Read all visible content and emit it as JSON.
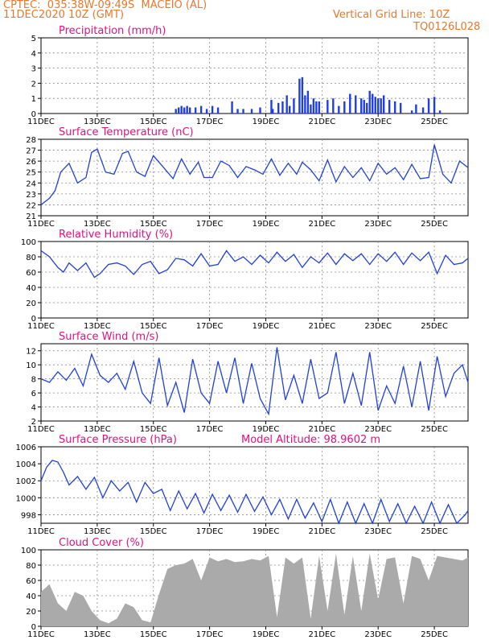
{
  "header": {
    "line1": "CPTEC:  035:38W-09:49S  MACEIO (AL)",
    "line2": "11DEC2020 10Z (GMT)",
    "grid_note": "Vertical Grid Line: 10Z",
    "code": "TQ0126L028"
  },
  "colors": {
    "header": "#e8782a",
    "title": "#e0117f",
    "line": "#1f3fe0",
    "bar": "#1f3fe0",
    "cloud": "#aaaaaa",
    "grid": "#8a8a8a"
  },
  "chart_data": [
    {
      "type": "bar",
      "title": "Precipitation (mm/h)",
      "x_ticks": [
        "11DEC",
        "13DEC",
        "15DEC",
        "17DEC",
        "19DEC",
        "21DEC",
        "23DEC",
        "25DEC"
      ],
      "ylim": [
        0,
        5
      ],
      "y_ticks": [
        "0",
        "1",
        "2",
        "3",
        "4",
        "5"
      ],
      "grid": true,
      "series": [
        {
          "x": [
            4.8,
            4.9,
            5.0,
            5.1,
            5.2,
            5.3,
            5.5,
            5.7,
            5.9,
            6.1,
            6.3,
            6.8,
            7.0,
            7.2,
            7.5,
            7.8,
            8.2,
            8.25,
            8.45,
            8.6,
            8.75,
            8.85,
            9.0,
            9.2,
            9.3,
            9.4,
            9.5,
            9.6,
            9.7,
            9.8,
            9.9,
            10.2,
            10.4,
            10.6,
            10.8,
            11.0,
            11.2,
            11.4,
            11.5,
            11.6,
            11.7,
            11.8,
            11.9,
            12.0,
            12.1,
            12.2,
            12.4,
            12.6,
            12.8,
            13.2,
            13.35,
            13.6,
            13.8,
            14.0,
            14.2
          ],
          "values": [
            0.3,
            0.4,
            0.5,
            0.4,
            0.5,
            0.4,
            0.4,
            0.5,
            0.3,
            0.5,
            0.4,
            0.8,
            0.3,
            0.3,
            0.3,
            0.4,
            0.9,
            0.3,
            0.7,
            0.8,
            1.2,
            0.5,
            1.0,
            2.3,
            2.4,
            1.2,
            1.5,
            0.6,
            1.0,
            0.8,
            0.8,
            0.9,
            1.0,
            0.5,
            0.8,
            1.3,
            1.2,
            1.0,
            0.9,
            0.7,
            1.5,
            1.3,
            1.1,
            1.0,
            1.0,
            1.2,
            0.9,
            0.8,
            0.7,
            0.2,
            0.6,
            0.4,
            1.0,
            1.1,
            0.2
          ]
        }
      ]
    },
    {
      "type": "line",
      "title": "Surface Temperature (nC)",
      "x_ticks": [
        "11DEC",
        "13DEC",
        "15DEC",
        "17DEC",
        "19DEC",
        "21DEC",
        "23DEC",
        "25DEC"
      ],
      "ylim": [
        21,
        28
      ],
      "y_ticks": [
        "21",
        "22",
        "23",
        "24",
        "25",
        "26",
        "27",
        "28"
      ],
      "grid": true,
      "series": [
        {
          "x": [
            0.0,
            0.3,
            0.5,
            0.7,
            1.0,
            1.3,
            1.6,
            1.8,
            2.0,
            2.3,
            2.6,
            2.9,
            3.1,
            3.4,
            3.7,
            4.0,
            4.4,
            4.7,
            5.0,
            5.3,
            5.6,
            5.8,
            6.1,
            6.4,
            6.7,
            7.0,
            7.3,
            7.6,
            7.9,
            8.2,
            8.5,
            8.8,
            9.1,
            9.3,
            9.6,
            9.9,
            10.2,
            10.5,
            10.8,
            11.1,
            11.4,
            11.7,
            12.0,
            12.3,
            12.6,
            12.9,
            13.2,
            13.5,
            13.8,
            14.0,
            14.3,
            14.6,
            14.9,
            15.2
          ],
          "values": [
            22.0,
            22.6,
            23.3,
            25.0,
            25.8,
            24.0,
            24.5,
            26.8,
            27.1,
            25.0,
            24.8,
            26.7,
            26.9,
            25.0,
            24.6,
            26.5,
            25.3,
            24.4,
            26.2,
            24.8,
            25.9,
            24.5,
            24.5,
            26.0,
            25.6,
            24.5,
            25.5,
            25.2,
            24.8,
            26.2,
            24.7,
            25.8,
            24.8,
            25.9,
            25.2,
            24.2,
            26.1,
            24.1,
            25.5,
            24.5,
            25.4,
            24.2,
            25.8,
            24.8,
            25.4,
            24.3,
            25.7,
            24.4,
            24.5,
            27.5,
            24.8,
            24.0,
            26.0,
            25.4
          ]
        }
      ]
    },
    {
      "type": "line",
      "title": "Relative Humidity (%)",
      "x_ticks": [
        "11DEC",
        "13DEC",
        "15DEC",
        "17DEC",
        "19DEC",
        "21DEC",
        "23DEC",
        "25DEC"
      ],
      "ylim": [
        0,
        100
      ],
      "y_ticks": [
        "0",
        "20",
        "40",
        "60",
        "80",
        "100"
      ],
      "grid": true,
      "series": [
        {
          "x": [
            0.0,
            0.3,
            0.6,
            0.8,
            1.0,
            1.3,
            1.6,
            1.9,
            2.1,
            2.4,
            2.7,
            3.0,
            3.3,
            3.6,
            3.9,
            4.2,
            4.5,
            4.8,
            5.1,
            5.4,
            5.7,
            6.0,
            6.3,
            6.6,
            6.9,
            7.2,
            7.5,
            7.8,
            8.1,
            8.4,
            8.7,
            9.0,
            9.3,
            9.6,
            9.9,
            10.2,
            10.5,
            10.8,
            11.1,
            11.4,
            11.7,
            12.0,
            12.3,
            12.6,
            12.9,
            13.2,
            13.5,
            13.8,
            14.1,
            14.4,
            14.7,
            15.0,
            15.2
          ],
          "values": [
            88,
            80,
            66,
            60,
            72,
            62,
            72,
            53,
            58,
            70,
            72,
            68,
            57,
            70,
            74,
            58,
            63,
            78,
            76,
            68,
            84,
            68,
            70,
            88,
            74,
            80,
            70,
            82,
            72,
            86,
            74,
            83,
            66,
            80,
            72,
            85,
            70,
            84,
            75,
            84,
            70,
            84,
            74,
            86,
            70,
            85,
            75,
            86,
            58,
            82,
            70,
            72,
            78
          ]
        }
      ]
    },
    {
      "type": "line",
      "title": "Surface Wind (m/s)",
      "x_ticks": [
        "11DEC",
        "13DEC",
        "15DEC",
        "17DEC",
        "19DEC",
        "21DEC",
        "23DEC",
        "25DEC"
      ],
      "ylim": [
        2,
        13
      ],
      "y_ticks": [
        "2",
        "4",
        "6",
        "8",
        "10",
        "12"
      ],
      "grid": true,
      "series": [
        {
          "x": [
            0.0,
            0.3,
            0.6,
            0.9,
            1.2,
            1.5,
            1.8,
            2.1,
            2.4,
            2.7,
            3.0,
            3.3,
            3.6,
            3.9,
            4.2,
            4.5,
            4.8,
            5.1,
            5.4,
            5.7,
            6.0,
            6.3,
            6.6,
            6.9,
            7.2,
            7.5,
            7.8,
            8.1,
            8.4,
            8.7,
            9.0,
            9.3,
            9.6,
            9.9,
            10.2,
            10.5,
            10.8,
            11.1,
            11.4,
            11.7,
            12.0,
            12.3,
            12.6,
            12.9,
            13.2,
            13.5,
            13.8,
            14.1,
            14.4,
            14.7,
            15.0,
            15.2
          ],
          "values": [
            8,
            7.5,
            9,
            7.8,
            9.5,
            7.0,
            11.5,
            8.5,
            7.5,
            8.8,
            6.5,
            10.5,
            6.0,
            4.5,
            11.0,
            4.2,
            7.5,
            3.2,
            10.8,
            6.0,
            4.5,
            10.5,
            6.0,
            11.0,
            4.5,
            10.2,
            5.2,
            3.0,
            12.5,
            5.0,
            8.5,
            4.5,
            10.8,
            5.2,
            6.0,
            11.8,
            4.5,
            8.8,
            4.2,
            11.8,
            3.5,
            7.0,
            4.5,
            9.8,
            4.0,
            10.5,
            3.5,
            11.2,
            5.5,
            8.8,
            10.0,
            7.5
          ]
        }
      ]
    },
    {
      "type": "line",
      "title": "Surface Pressure (hPa)",
      "annotation": "Model Altitude: 98.9602 m",
      "x_ticks": [
        "11DEC",
        "13DEC",
        "15DEC",
        "17DEC",
        "19DEC",
        "21DEC",
        "23DEC",
        "25DEC"
      ],
      "ylim": [
        997,
        1006
      ],
      "y_ticks": [
        "998",
        "1000",
        "1002",
        "1004",
        "1006"
      ],
      "grid": true,
      "series": [
        {
          "x": [
            0.0,
            0.2,
            0.4,
            0.6,
            0.8,
            1.0,
            1.3,
            1.6,
            1.9,
            2.2,
            2.5,
            2.8,
            3.1,
            3.4,
            3.7,
            4.0,
            4.3,
            4.6,
            4.9,
            5.2,
            5.5,
            5.8,
            6.1,
            6.4,
            6.7,
            7.0,
            7.3,
            7.6,
            7.9,
            8.2,
            8.5,
            8.8,
            9.1,
            9.4,
            9.7,
            10.0,
            10.3,
            10.6,
            10.9,
            11.2,
            11.5,
            11.8,
            12.1,
            12.4,
            12.7,
            13.0,
            13.3,
            13.6,
            13.9,
            14.2,
            14.5,
            14.8,
            15.1,
            15.2
          ],
          "values": [
            1002.0,
            1003.6,
            1004.4,
            1004.2,
            1003.0,
            1001.5,
            1002.5,
            1001.0,
            1002.4,
            1000.0,
            1002.0,
            1000.8,
            1001.8,
            999.5,
            1001.8,
            1000.5,
            1001.0,
            998.5,
            1000.8,
            998.7,
            1000.5,
            998.2,
            1000.4,
            998.5,
            1000.3,
            998.3,
            1000.4,
            998.4,
            1000.1,
            998.0,
            999.8,
            997.5,
            999.8,
            997.6,
            999.4,
            997.2,
            999.8,
            997.0,
            999.5,
            996.8,
            999.3,
            997.0,
            999.8,
            997.2,
            999.3,
            997.0,
            999.0,
            996.8,
            999.5,
            996.6,
            999.2,
            996.8,
            998.0,
            998.5
          ]
        }
      ]
    },
    {
      "type": "area",
      "title": "Cloud Cover (%)",
      "x_ticks": [
        "11DEC",
        "13DEC",
        "15DEC",
        "17DEC",
        "19DEC",
        "21DEC",
        "23DEC",
        "25DEC"
      ],
      "ylim": [
        0,
        100
      ],
      "y_ticks": [
        "0",
        "20",
        "40",
        "60",
        "80",
        "100"
      ],
      "grid": true,
      "series": [
        {
          "x": [
            0.0,
            0.3,
            0.6,
            0.9,
            1.2,
            1.5,
            1.8,
            2.1,
            2.4,
            2.7,
            3.0,
            3.3,
            3.6,
            3.9,
            4.2,
            4.5,
            4.8,
            5.1,
            5.4,
            5.7,
            6.0,
            6.3,
            6.6,
            6.9,
            7.2,
            7.5,
            7.8,
            8.1,
            8.4,
            8.7,
            9.0,
            9.3,
            9.6,
            9.9,
            10.2,
            10.5,
            10.8,
            11.1,
            11.4,
            11.7,
            12.0,
            12.3,
            12.6,
            12.9,
            13.2,
            13.5,
            13.8,
            14.1,
            14.4,
            14.7,
            15.0,
            15.2
          ],
          "values": [
            45,
            55,
            30,
            20,
            45,
            40,
            20,
            8,
            4,
            10,
            30,
            25,
            8,
            5,
            42,
            75,
            80,
            82,
            88,
            60,
            90,
            85,
            88,
            84,
            85,
            88,
            86,
            92,
            12,
            90,
            82,
            90,
            10,
            92,
            20,
            95,
            15,
            92,
            20,
            95,
            35,
            88,
            90,
            30,
            92,
            88,
            60,
            92,
            90,
            88,
            86,
            90
          ]
        }
      ]
    }
  ]
}
